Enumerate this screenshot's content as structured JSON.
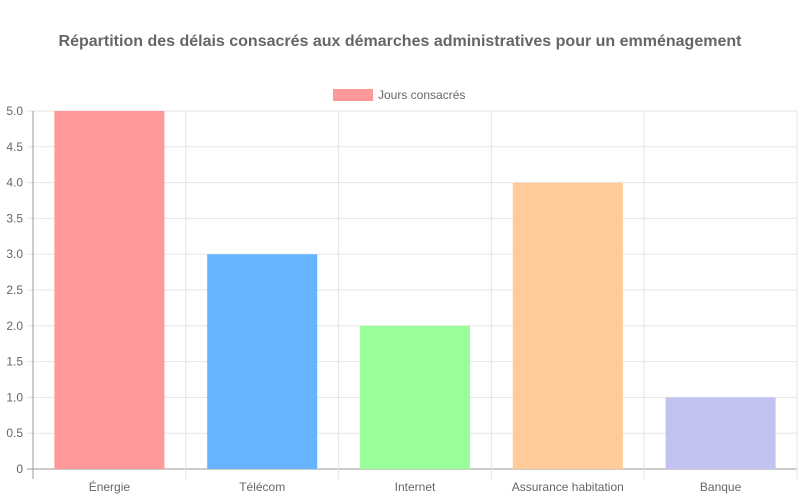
{
  "chart_data": {
    "type": "bar",
    "title": "Répartition des délais consacrés aux démarches administratives pour un emménagement",
    "categories": [
      "Énergie",
      "Télécom",
      "Internet",
      "Assurance habitation",
      "Banque"
    ],
    "series": [
      {
        "name": "Jours consacrés",
        "values": [
          5,
          3,
          2,
          4,
          1
        ],
        "colors": [
          "#ff9999",
          "#66b3ff",
          "#99ff99",
          "#ffcc99",
          "#c2c2f0"
        ]
      }
    ],
    "y_ticks": [
      "0",
      "0.5",
      "1.0",
      "1.5",
      "2.0",
      "2.5",
      "3.0",
      "3.5",
      "4.0",
      "4.5",
      "5.0"
    ],
    "ylim": [
      0,
      5
    ],
    "grid": true,
    "legend_position": "top-center",
    "colors": {
      "grid": "#e5e5e5",
      "axis": "#999999",
      "text": "#666666"
    }
  }
}
